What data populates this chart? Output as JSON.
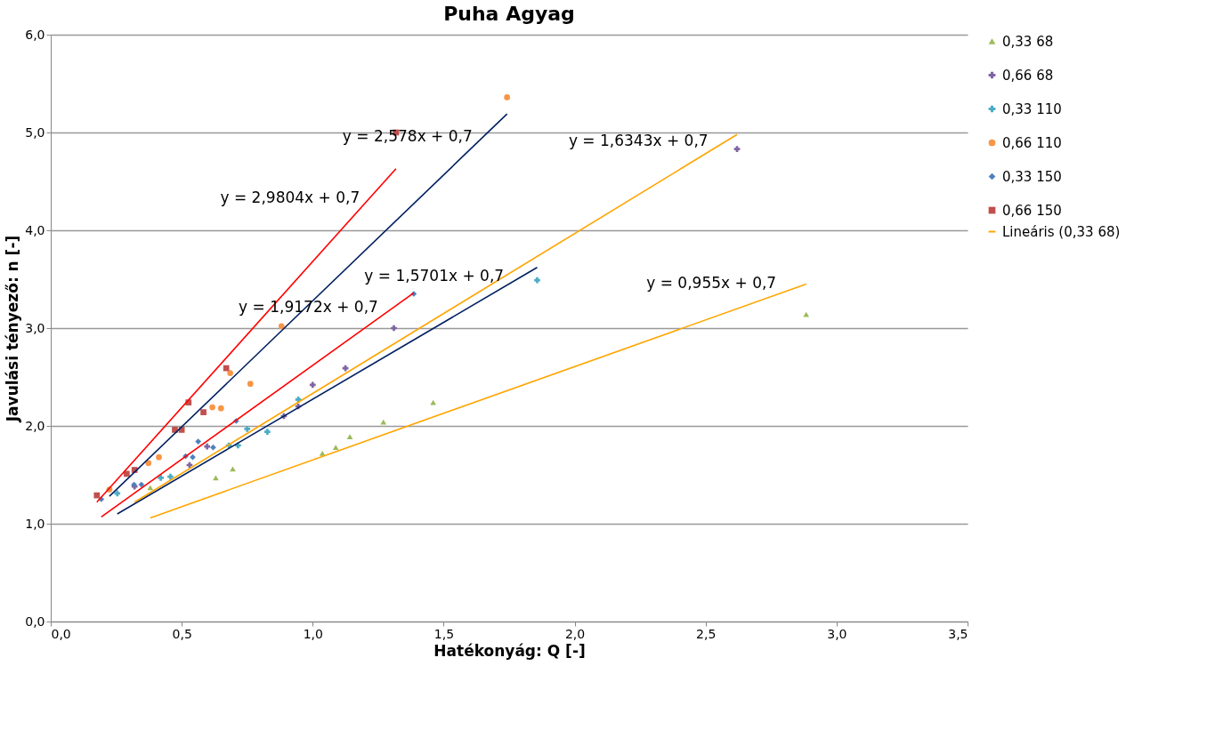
{
  "chart_data": {
    "type": "scatter",
    "title": "Puha Agyag",
    "xlabel": "Hatékonyág: Q [-]",
    "ylabel": "Javulási tényező: n [-]",
    "xlim": [
      0,
      3.5
    ],
    "ylim": [
      0,
      6
    ],
    "xticks": [
      {
        "value": 0,
        "label": "0,0"
      },
      {
        "value": 0.5,
        "label": "0,5"
      },
      {
        "value": 1,
        "label": "1,0"
      },
      {
        "value": 1.5,
        "label": "1,5"
      },
      {
        "value": 2,
        "label": "2,0"
      },
      {
        "value": 2.5,
        "label": "2,5"
      },
      {
        "value": 3,
        "label": "3,0"
      },
      {
        "value": 3.5,
        "label": "3,5"
      }
    ],
    "yticks": [
      {
        "value": 0,
        "label": "0,0"
      },
      {
        "value": 1,
        "label": "1,0"
      },
      {
        "value": 2,
        "label": "2,0"
      },
      {
        "value": 3,
        "label": "3,0"
      },
      {
        "value": 4,
        "label": "4,0"
      },
      {
        "value": 5,
        "label": "5,0"
      },
      {
        "value": 6,
        "label": "6,0"
      }
    ],
    "grid": "y",
    "legend": "right",
    "series": [
      {
        "name": "0,33 68",
        "marker": "triangle",
        "color": "#9bbb59",
        "x": [
          0.38,
          0.63,
          0.695,
          1.037,
          1.088,
          1.142,
          1.27,
          1.46,
          2.884
        ],
        "values": [
          1.37,
          1.47,
          1.56,
          1.72,
          1.78,
          1.89,
          2.04,
          2.24,
          3.14
        ]
      },
      {
        "name": "0,66 68",
        "marker": "cross",
        "color": "#8064a2",
        "x": [
          0.32,
          0.53,
          0.597,
          0.89,
          0.945,
          1.0,
          1.125,
          1.31,
          2.62
        ],
        "values": [
          1.38,
          1.6,
          1.79,
          2.1,
          2.2,
          2.42,
          2.59,
          3.0,
          4.83
        ]
      },
      {
        "name": "0,33 110",
        "marker": "cross",
        "color": "#4bacc6",
        "x": [
          0.254,
          0.42,
          0.457,
          0.68,
          0.715,
          0.75,
          0.827,
          0.945,
          1.857
        ],
        "values": [
          1.31,
          1.47,
          1.48,
          1.8,
          1.8,
          1.97,
          1.94,
          2.27,
          3.49
        ]
      },
      {
        "name": "0,66 110",
        "marker": "circle",
        "color": "#f79646",
        "x": [
          0.224,
          0.373,
          0.413,
          0.617,
          0.65,
          0.685,
          0.762,
          0.881,
          1.742
        ],
        "values": [
          1.35,
          1.62,
          1.68,
          2.19,
          2.18,
          2.54,
          2.43,
          3.02,
          5.36
        ]
      },
      {
        "name": "0,33 150",
        "marker": "diamond",
        "color": "#4f81bd",
        "x": [
          0.193,
          0.318,
          0.346,
          0.515,
          0.542,
          0.563,
          0.62,
          0.708,
          1.386
        ],
        "values": [
          1.25,
          1.4,
          1.4,
          1.69,
          1.68,
          1.84,
          1.78,
          2.05,
          3.35
        ]
      },
      {
        "name": "0,66 150",
        "marker": "square",
        "color": "#c0504d",
        "x": [
          0.176,
          0.29,
          0.32,
          0.474,
          0.5,
          0.526,
          0.583,
          0.67,
          1.318
        ],
        "values": [
          1.29,
          1.51,
          1.55,
          1.96,
          1.96,
          2.24,
          2.14,
          2.59,
          5.0
        ]
      },
      {
        "name": "Lineáris (0,33 68)",
        "type": "line",
        "line_style": "solid",
        "color": "#ffa500",
        "x": [
          0.38,
          2.884
        ],
        "values": [
          1.06,
          3.45
        ]
      },
      {
        "type": "line",
        "line_style": "solid",
        "color": "#002060",
        "x": [
          0.254,
          1.857
        ],
        "values": [
          1.1,
          3.62
        ]
      },
      {
        "type": "line",
        "line_style": "solid",
        "color": "#ffa500",
        "x": [
          0.32,
          2.62
        ],
        "values": [
          1.22,
          4.98
        ]
      },
      {
        "type": "line",
        "line_style": "solid",
        "color": "#ff0000",
        "x": [
          0.193,
          1.386
        ],
        "values": [
          1.07,
          3.36
        ]
      },
      {
        "type": "line",
        "line_style": "solid",
        "color": "#002060",
        "x": [
          0.224,
          1.742
        ],
        "values": [
          1.28,
          5.19
        ]
      },
      {
        "type": "line",
        "line_style": "solid",
        "color": "#ff0000",
        "x": [
          0.176,
          1.318
        ],
        "values": [
          1.22,
          4.63
        ]
      }
    ],
    "annotations": [
      {
        "text": "y = 0,955x + 0,7",
        "x": 2.77,
        "y": 3.35
      },
      {
        "text": "y = 1,5701x + 0,7",
        "x": 1.73,
        "y": 3.42
      },
      {
        "text": "y = 1,6343x + 0,7",
        "x": 2.51,
        "y": 4.8
      },
      {
        "text": "y = 1,9172x + 0,7",
        "x": 1.25,
        "y": 3.1
      },
      {
        "text": "y = 2,578x + 0,7",
        "x": 1.61,
        "y": 4.85
      },
      {
        "text": "y = 2,9804x + 0,7",
        "x": 1.18,
        "y": 4.22
      }
    ]
  }
}
